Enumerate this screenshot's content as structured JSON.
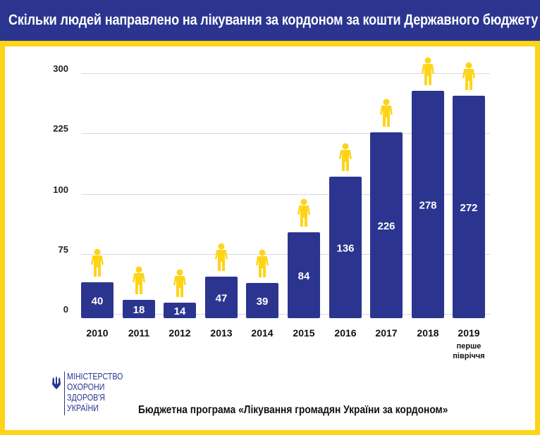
{
  "header": {
    "title": "Скільки людей направлено на лікування за кордоном за кошти  Державного бюджету"
  },
  "colors": {
    "accent_yellow": "#fed418",
    "bar_blue": "#2b3590",
    "header_blue": "#2b3590"
  },
  "footer": {
    "ministry_lines": [
      "МІНІСТЕРСТВО",
      "ОХОРОНИ",
      "ЗДОРОВ'Я",
      "УКРАЇНИ"
    ],
    "logo_icon": "trident-icon",
    "note": "Бюджетна програма «Лікування громадян України за кордоном»"
  },
  "chart_data": {
    "type": "bar",
    "categories": [
      "2010",
      "2011",
      "2012",
      "2013",
      "2014",
      "2015",
      "2016",
      "2017",
      "2018",
      "2019"
    ],
    "category_subtitles": {
      "2019": "перше півріччя"
    },
    "values": [
      40,
      18,
      14,
      47,
      39,
      84,
      136,
      226,
      278,
      272
    ],
    "y_tick_labels": [
      "0",
      "75",
      "100",
      "225",
      "300"
    ],
    "ylim": [
      0,
      300
    ],
    "grid": true,
    "marker_icon": "person-icon",
    "title": "",
    "xlabel": "",
    "ylabel": ""
  }
}
